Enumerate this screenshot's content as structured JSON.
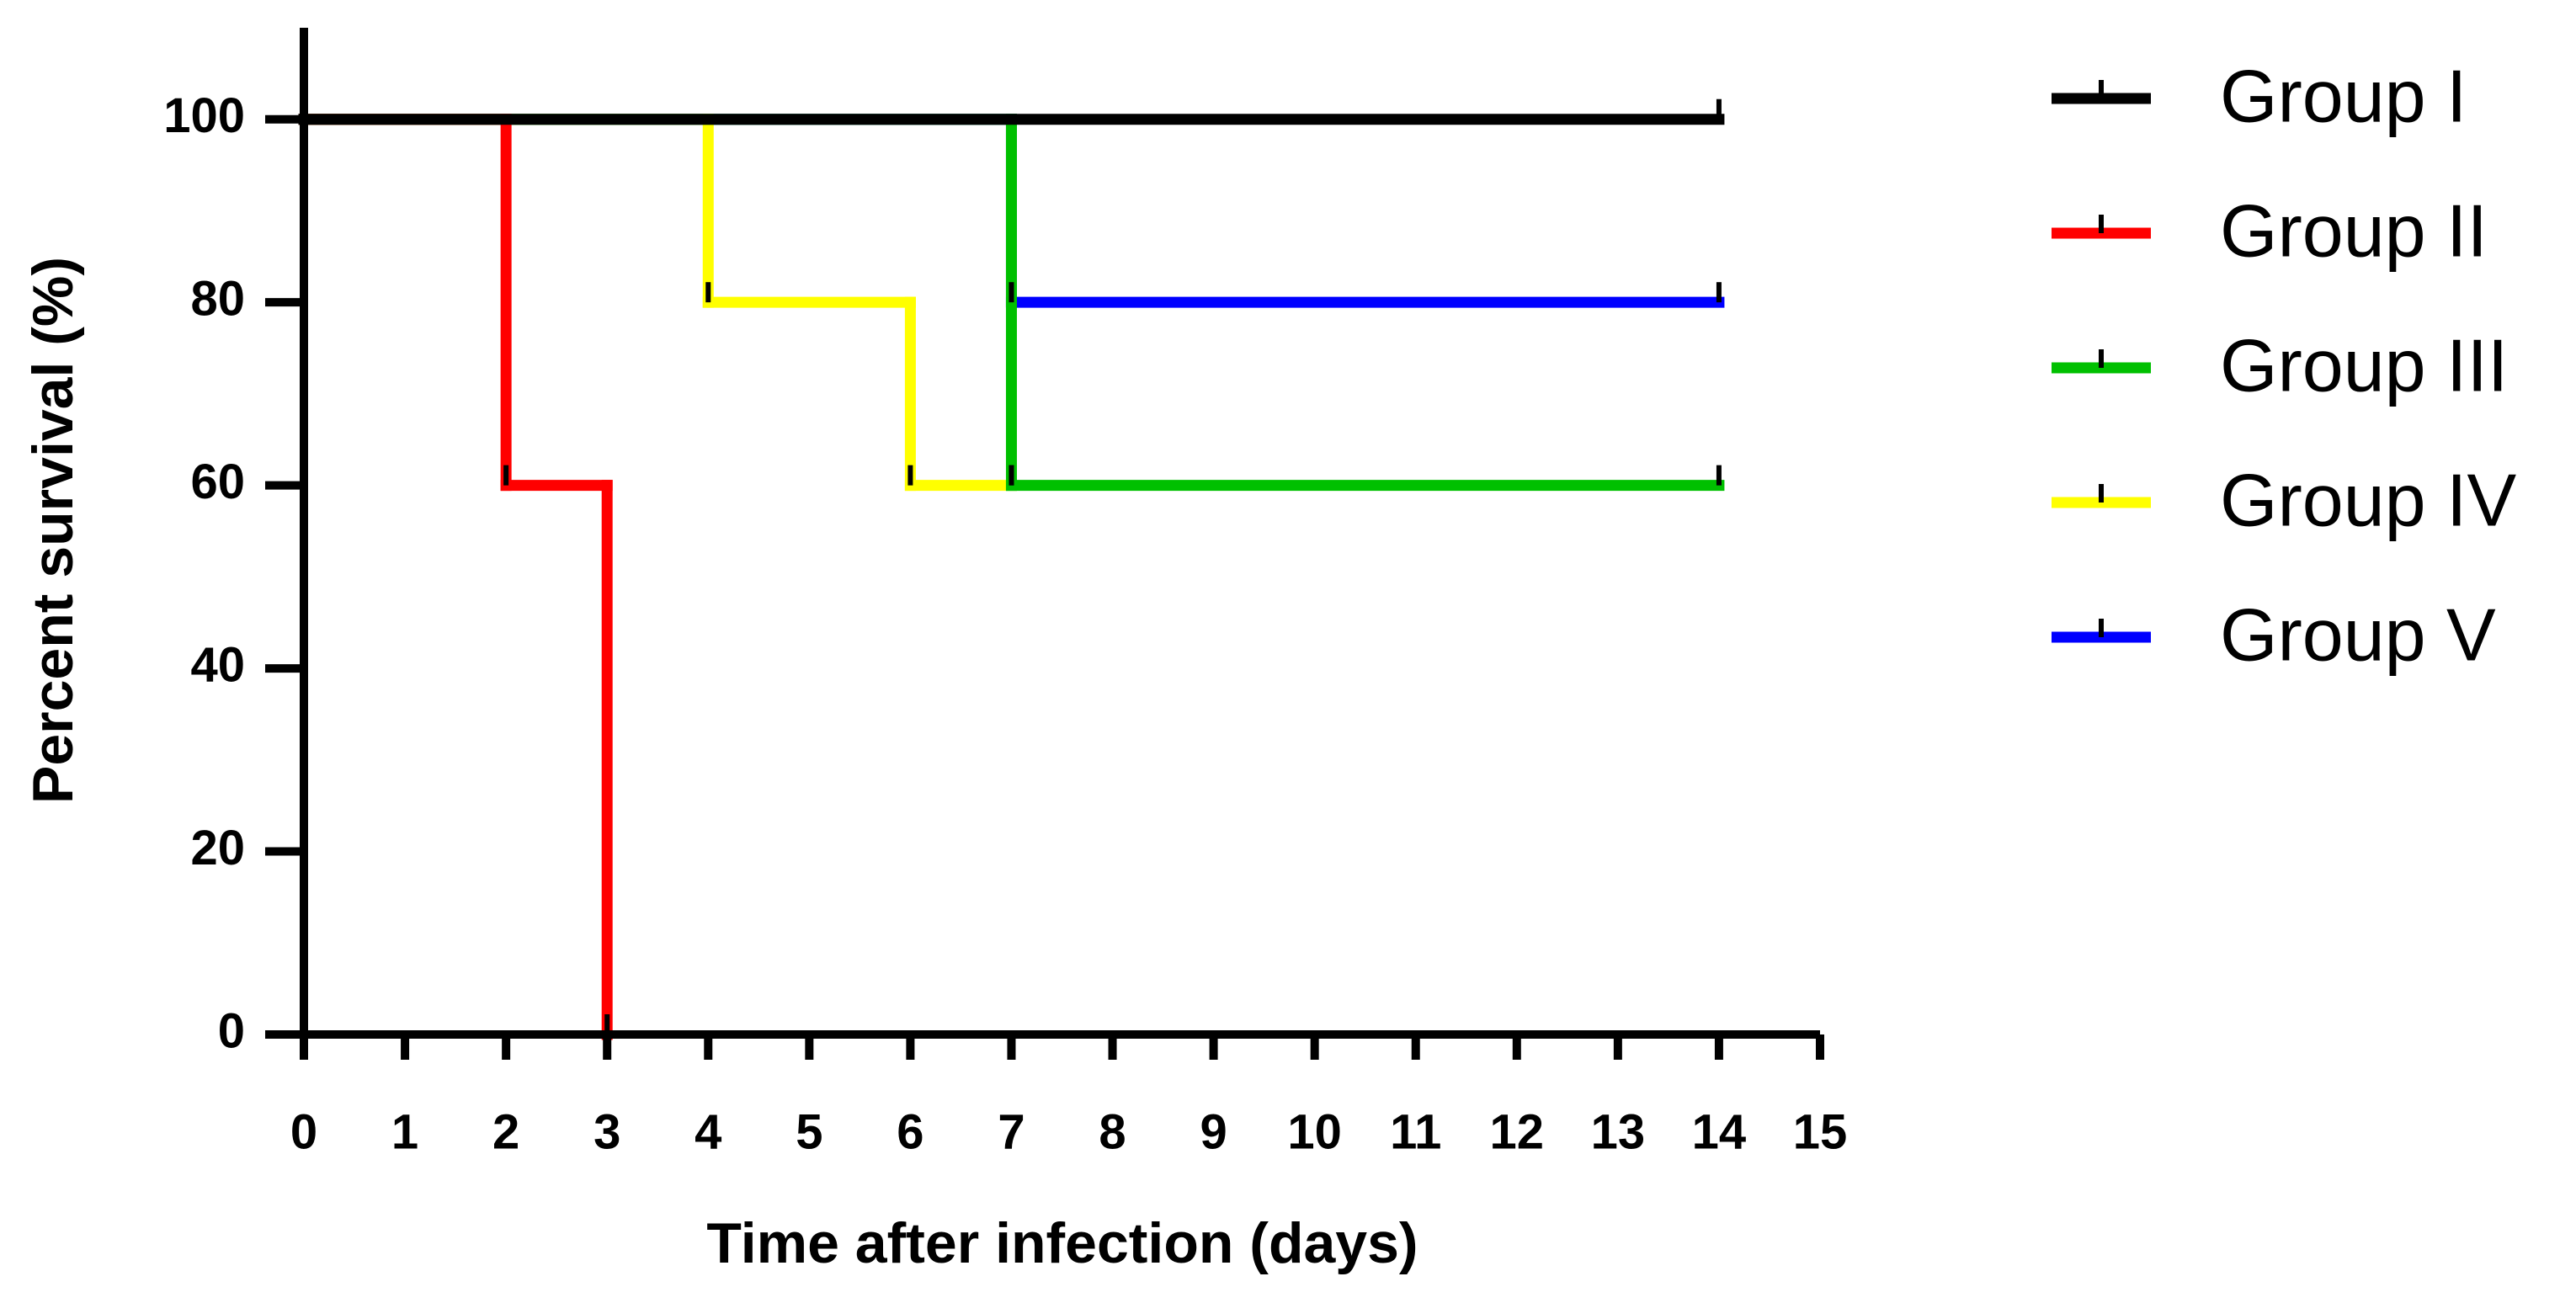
{
  "chart_data": {
    "type": "step",
    "xlabel": "Time after infection (days)",
    "ylabel": "Percent survival (%)",
    "xlim": [
      0,
      15
    ],
    "xticks": [
      0,
      1,
      2,
      3,
      4,
      5,
      6,
      7,
      8,
      9,
      10,
      11,
      12,
      13,
      14,
      15
    ],
    "ylim": [
      0,
      110
    ],
    "yticks": [
      0,
      20,
      40,
      60,
      80,
      100
    ],
    "legend": "right",
    "series": [
      {
        "name": "Group I",
        "color": "#000000",
        "x": [
          0,
          14
        ],
        "values": [
          100,
          100
        ]
      },
      {
        "name": "Group II",
        "color": "#ff0000",
        "x": [
          0,
          2,
          3
        ],
        "values": [
          100,
          60,
          0
        ]
      },
      {
        "name": "Group III",
        "color": "#00c000",
        "x": [
          0,
          7,
          14
        ],
        "values": [
          100,
          60,
          60
        ]
      },
      {
        "name": "Group IV",
        "color": "#ffff00",
        "x": [
          0,
          4,
          6,
          7
        ],
        "values": [
          100,
          80,
          60,
          60
        ]
      },
      {
        "name": "Group V",
        "color": "#0000ff",
        "x": [
          0,
          7,
          14
        ],
        "values": [
          100,
          80,
          80
        ]
      }
    ]
  }
}
